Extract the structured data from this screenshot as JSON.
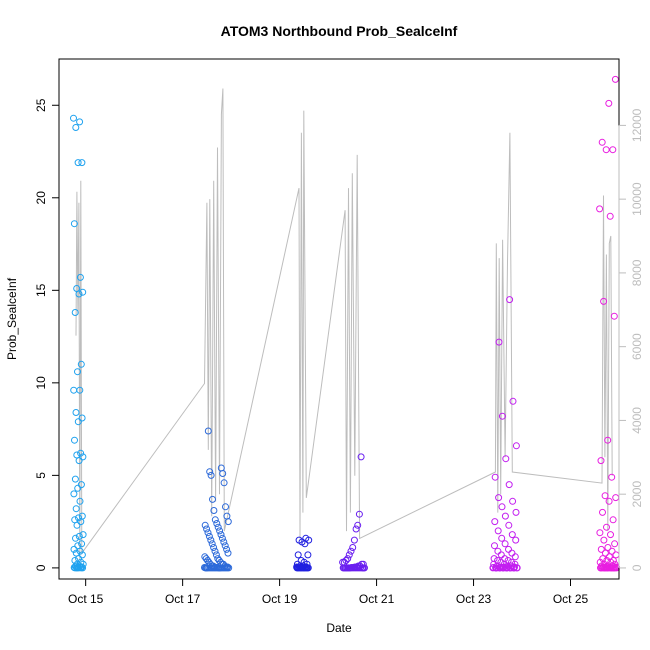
{
  "chart_data": {
    "type": "scatter",
    "title": "ATOM3 Northbound Prob_SealceInf",
    "xlabel": "Date",
    "ylabel": "Prob_SealceInf",
    "x_ticks": [
      "Oct 15",
      "Oct 17",
      "Oct 19",
      "Oct 21",
      "Oct 23",
      "Oct 25"
    ],
    "x_tick_days": [
      15,
      17,
      19,
      21,
      23,
      25
    ],
    "xlim": [
      14.45,
      26.0
    ],
    "y_ticks": [
      0,
      5,
      10,
      15,
      20,
      25
    ],
    "ylim": [
      -0.6,
      27.5
    ],
    "y2_ticks": [
      0,
      2000,
      4000,
      6000,
      8000,
      10000,
      12000
    ],
    "y2lim": [
      -300,
      13800
    ],
    "colors": {
      "axis": "#000000",
      "secondary": "#bdbdbd",
      "gradient_start": "#1fa2ef",
      "gradient_end": "#e81ee0"
    },
    "groups": [
      {
        "x_start": 14.75,
        "x_end": 14.95,
        "color": "#1fa2ef",
        "points": [
          24.3,
          24.1,
          23.8,
          21.9,
          21.9,
          18.6,
          15.7,
          15.1,
          14.9,
          14.8,
          13.8,
          11.0,
          10.6,
          9.6,
          9.6,
          8.4,
          8.1,
          7.9,
          6.9,
          6.2,
          6.1,
          6.0,
          5.8,
          4.8,
          4.5,
          4.3,
          4.0,
          3.6,
          3.2,
          2.8,
          2.7,
          2.6,
          2.5,
          2.3,
          1.8,
          1.7,
          1.6,
          1.3,
          1.2,
          1.0,
          0.9,
          0.8,
          0.7,
          0.5,
          0.4,
          0.3,
          0.2,
          0.2,
          0.1,
          0.1,
          0.05,
          0.05,
          0.02,
          0.02,
          0.0,
          0.0,
          0.0,
          0.0,
          0.0,
          0.0
        ]
      },
      {
        "x_start": 17.45,
        "x_end": 17.95,
        "color": "#2d6ad9",
        "points": [
          7.4,
          5.4,
          5.2,
          5.1,
          5.0,
          4.6,
          3.7,
          3.3,
          3.1,
          2.8,
          2.6,
          2.5,
          2.4,
          2.3,
          2.2,
          2.1,
          2.0,
          1.9,
          1.8,
          1.7,
          1.6,
          1.5,
          1.4,
          1.3,
          1.2,
          1.1,
          1.0,
          0.9,
          0.8,
          0.7,
          0.6,
          0.5,
          0.5,
          0.4,
          0.4,
          0.3,
          0.3,
          0.2,
          0.2,
          0.2,
          0.1,
          0.1,
          0.1,
          0.05,
          0.05,
          0.05,
          0.02,
          0.02,
          0.02,
          0.0,
          0.0,
          0.0,
          0.0,
          0.0,
          0.0,
          0.0,
          0.0,
          0.0,
          0.0,
          0.0,
          0.0,
          0.0,
          0.0,
          0.0,
          0.0,
          0.0,
          0.0,
          0.0,
          0.0,
          0.0
        ]
      },
      {
        "x_start": 19.35,
        "x_end": 19.6,
        "color": "#2020e0",
        "points": [
          1.6,
          1.5,
          1.5,
          1.4,
          1.3,
          0.7,
          0.7,
          0.4,
          0.3,
          0.2,
          0.2,
          0.1,
          0.1,
          0.05,
          0.05,
          0.02,
          0.02,
          0.0,
          0.0,
          0.0,
          0.0,
          0.0,
          0.0,
          0.0,
          0.0,
          0.0,
          0.0,
          0.0,
          0.0,
          0.0
        ]
      },
      {
        "x_start": 20.3,
        "x_end": 20.75,
        "color": "#6a1ff0",
        "points": [
          6.0,
          2.9,
          2.3,
          2.1,
          1.5,
          1.1,
          0.9,
          0.7,
          0.5,
          0.4,
          0.3,
          0.3,
          0.2,
          0.2,
          0.1,
          0.1,
          0.05,
          0.05,
          0.02,
          0.02,
          0.0,
          0.0,
          0.0,
          0.0,
          0.0,
          0.0,
          0.0,
          0.0,
          0.0,
          0.0,
          0.0,
          0.0,
          0.0,
          0.0,
          0.0,
          0.0,
          0.0,
          0.0,
          0.0,
          0.0
        ]
      },
      {
        "x_start": 23.4,
        "x_end": 23.9,
        "color": "#c21ff0",
        "points": [
          14.5,
          12.2,
          9.0,
          8.2,
          6.6,
          5.9,
          4.9,
          4.5,
          3.8,
          3.6,
          3.3,
          3.0,
          2.8,
          2.5,
          2.3,
          2.0,
          1.8,
          1.6,
          1.5,
          1.3,
          1.2,
          1.0,
          0.9,
          0.8,
          0.7,
          0.6,
          0.5,
          0.5,
          0.4,
          0.4,
          0.3,
          0.3,
          0.2,
          0.2,
          0.2,
          0.1,
          0.1,
          0.1,
          0.05,
          0.05,
          0.05,
          0.02,
          0.02,
          0.0,
          0.0,
          0.0,
          0.0,
          0.0,
          0.0,
          0.0,
          0.0,
          0.0,
          0.0,
          0.0,
          0.0,
          0.0,
          0.0,
          0.0,
          0.0,
          0.0,
          0.0,
          0.0,
          0.0,
          0.0,
          0.0
        ]
      },
      {
        "x_start": 25.6,
        "x_end": 25.95,
        "color": "#e81ee0",
        "points": [
          26.4,
          25.1,
          23.0,
          22.6,
          22.6,
          19.4,
          19.0,
          14.4,
          13.6,
          6.9,
          5.8,
          4.9,
          3.9,
          3.8,
          3.6,
          3.0,
          2.6,
          2.2,
          1.9,
          1.8,
          1.5,
          1.3,
          1.1,
          1.0,
          0.9,
          0.8,
          0.7,
          0.6,
          0.5,
          0.4,
          0.4,
          0.3,
          0.3,
          0.2,
          0.2,
          0.1,
          0.1,
          0.1,
          0.05,
          0.05,
          0.02,
          0.02,
          0.0,
          0.0,
          0.0,
          0.0,
          0.0,
          0.0,
          0.0,
          0.0,
          0.0,
          0.0,
          0.0,
          0.0,
          0.0,
          0.0,
          0.0,
          0.0,
          0.0,
          0.0
        ]
      }
    ],
    "secondary_line": [
      [
        14.8,
        6300
      ],
      [
        14.82,
        10200
      ],
      [
        14.84,
        6900
      ],
      [
        14.86,
        9900
      ],
      [
        14.88,
        200
      ],
      [
        14.9,
        10500
      ],
      [
        14.92,
        400
      ],
      [
        17.45,
        5000
      ],
      [
        17.5,
        9900
      ],
      [
        17.53,
        3200
      ],
      [
        17.56,
        10000
      ],
      [
        17.6,
        1400
      ],
      [
        17.64,
        10500
      ],
      [
        17.68,
        1800
      ],
      [
        17.72,
        11400
      ],
      [
        17.76,
        2000
      ],
      [
        17.8,
        12300
      ],
      [
        17.83,
        13000
      ],
      [
        17.86,
        1000
      ],
      [
        19.4,
        10300
      ],
      [
        19.42,
        800
      ],
      [
        19.45,
        11800
      ],
      [
        19.48,
        1500
      ],
      [
        19.5,
        12400
      ],
      [
        19.55,
        1900
      ],
      [
        20.35,
        9700
      ],
      [
        20.38,
        1000
      ],
      [
        20.42,
        10300
      ],
      [
        20.46,
        1500
      ],
      [
        20.5,
        10700
      ],
      [
        20.55,
        2500
      ],
      [
        20.6,
        11200
      ],
      [
        20.65,
        800
      ],
      [
        23.45,
        2600
      ],
      [
        23.47,
        8800
      ],
      [
        23.5,
        1500
      ],
      [
        23.53,
        8400
      ],
      [
        23.56,
        2000
      ],
      [
        23.6,
        8900
      ],
      [
        23.65,
        3000
      ],
      [
        23.7,
        8300
      ],
      [
        23.75,
        11800
      ],
      [
        23.8,
        2600
      ],
      [
        25.65,
        2300
      ],
      [
        25.68,
        10100
      ],
      [
        25.71,
        3000
      ],
      [
        25.74,
        8500
      ],
      [
        25.77,
        1000
      ],
      [
        25.8,
        8800
      ],
      [
        25.83,
        9000
      ],
      [
        25.86,
        2500
      ]
    ]
  }
}
